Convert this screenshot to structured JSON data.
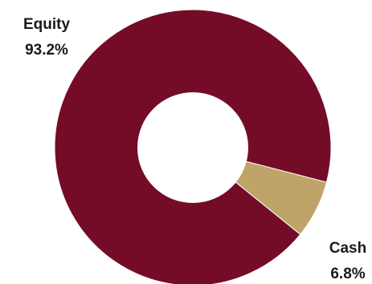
{
  "chart_data": {
    "type": "pie",
    "donut": true,
    "slices": [
      {
        "name": "Equity",
        "value": 93.2,
        "label": "93.2%",
        "color": "#740C28"
      },
      {
        "name": "Cash",
        "value": 6.8,
        "label": "6.8%",
        "color": "#BFA46A"
      }
    ],
    "legend": "none",
    "background": "#FFFFFF"
  }
}
